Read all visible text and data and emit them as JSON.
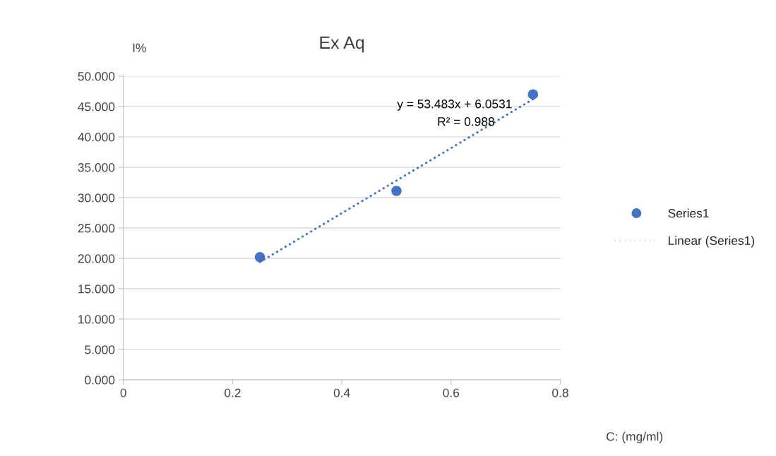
{
  "chart_data": {
    "type": "scatter",
    "title": "Ex Aq",
    "xlabel": "C: (mg/ml)",
    "ylabel": "I%",
    "series": [
      {
        "name": "Series1",
        "color": "#4472c4",
        "x": [
          0.25,
          0.5,
          0.75
        ],
        "values": [
          20.2,
          31.1,
          47.0
        ],
        "marker": "circle"
      },
      {
        "name": "Linear (Series1)",
        "type": "line",
        "color": "#4472c4",
        "x": [
          0.25,
          0.75
        ],
        "values": [
          19.4,
          46.2
        ],
        "line_style": "dotted",
        "marker": "none"
      }
    ],
    "annotations": [
      "y = 53.483x + 6.0531",
      "R² = 0.988"
    ],
    "xlim": [
      0,
      0.8
    ],
    "xticks": [
      0,
      0.2,
      0.4,
      0.6,
      0.8
    ],
    "ylim": [
      0,
      50
    ],
    "yticks": [
      {
        "value": 0,
        "label": "0.000"
      },
      {
        "value": 5,
        "label": "5.000"
      },
      {
        "value": 10,
        "label": "10.000"
      },
      {
        "value": 15,
        "label": "15.000"
      },
      {
        "value": 20,
        "label": "20.000"
      },
      {
        "value": 25,
        "label": "25.000"
      },
      {
        "value": 30,
        "label": "30.000"
      },
      {
        "value": 35,
        "label": "35.000"
      },
      {
        "value": 40,
        "label": "40.000"
      },
      {
        "value": 45,
        "label": "45.000"
      },
      {
        "value": 50,
        "label": "50.000"
      }
    ],
    "grid": "y",
    "legend": "right"
  }
}
